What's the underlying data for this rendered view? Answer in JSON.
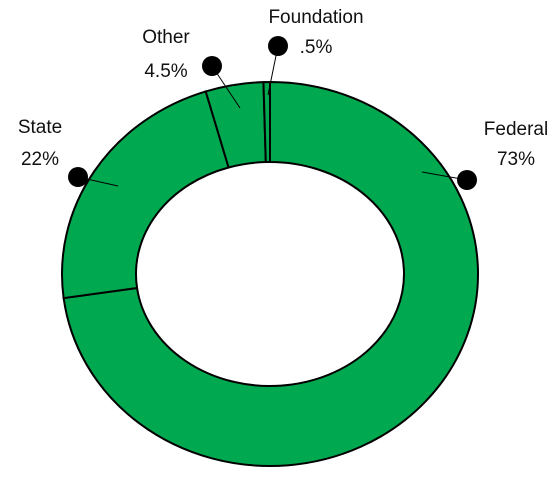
{
  "chart_data": {
    "type": "donut",
    "categories": [
      "Federal",
      "State",
      "Other",
      "Foundation"
    ],
    "values": [
      73,
      22,
      4.5,
      0.5
    ],
    "value_labels": [
      "73%",
      "22%",
      "4.5%",
      ".5%"
    ],
    "color": "#00a84f"
  }
}
